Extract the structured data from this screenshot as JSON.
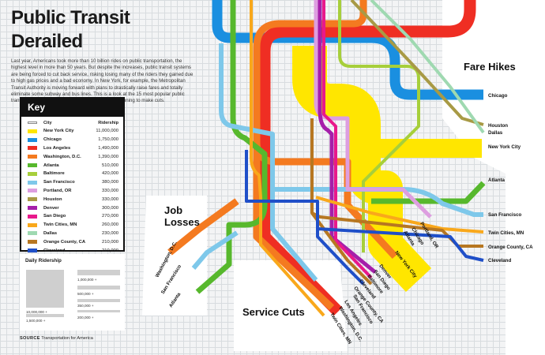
{
  "title": "Public Transit Derailed",
  "intro": "Last year, Americans took more than 10 billion rides on public transportation, the highest level in more than 50 years. But despite the increases, public transit systems are being forced to cut back service, risking losing many of the riders they gained due to high gas prices and a bad economy. In New York, for example, the Metropolitan Transit Authority is moving forward with plans to drastically raise fares and totally eliminate some subway and bus lines. This is a look at the 15 most popular public transit systems in America that have made or are planning to make cuts.",
  "key": {
    "title": "Key",
    "col_city": "City",
    "col_ridership": "Ridership",
    "rows": [
      {
        "city": "New York City",
        "ridership": "11,000,000",
        "color": "#ffe600"
      },
      {
        "city": "Chicago",
        "ridership": "1,750,000",
        "color": "#1a8fe0"
      },
      {
        "city": "Los Angeles",
        "ridership": "1,490,000",
        "color": "#ef2e23"
      },
      {
        "city": "Washington, D.C.",
        "ridership": "1,390,000",
        "color": "#f47a20"
      },
      {
        "city": "Atlanta",
        "ridership": "510,000",
        "color": "#57b82d"
      },
      {
        "city": "Baltimore",
        "ridership": "420,000",
        "color": "#a7cf3b"
      },
      {
        "city": "San Francisco",
        "ridership": "380,000",
        "color": "#7ec8ea"
      },
      {
        "city": "Portland, OR",
        "ridership": "330,000",
        "color": "#dd9ee0"
      },
      {
        "city": "Houston",
        "ridership": "330,000",
        "color": "#a89a45"
      },
      {
        "city": "Denver",
        "ridership": "300,000",
        "color": "#a51faa"
      },
      {
        "city": "San Diego",
        "ridership": "270,000",
        "color": "#e8198b"
      },
      {
        "city": "Twin Cities, MN",
        "ridership": "260,000",
        "color": "#f9a81b"
      },
      {
        "city": "Dallas",
        "ridership": "230,000",
        "color": "#9fd9b1"
      },
      {
        "city": "Orange County, CA",
        "ridership": "210,000",
        "color": "#b77721"
      },
      {
        "city": "Cleveland",
        "ridership": "210,000",
        "color": "#1f4fc8"
      }
    ]
  },
  "daily_ridership": {
    "title": "Daily Ridership",
    "labels": [
      "10,000,000 +",
      "1,500,000 +",
      "1,000,000 +",
      "500,000 +",
      "350,000 +",
      "200,000 +"
    ]
  },
  "source": {
    "label": "SOURCE",
    "text": "Transportation for America"
  },
  "regions": {
    "fare_hikes": "Fare Hikes",
    "job_losses": [
      "Job",
      "Losses"
    ],
    "service_cuts": "Service Cuts"
  },
  "endpoints": {
    "right": [
      "Chicago",
      "Houston",
      "Dallas",
      "New York City",
      "Atlanta",
      "San Francisco",
      "Twin Cities, MN",
      "Orange County, CA",
      "Cleveland"
    ],
    "left_rotated": [
      "Washington, D.C.",
      "San Francisco",
      "Atlanta"
    ],
    "diag_middle": [
      "Portland, OR",
      "Chicago",
      "Atlanta",
      "New York City",
      "Denver",
      "San Diego",
      "Baltimore",
      "Cleveland",
      "Orange County, CA"
    ],
    "diag_bottom": [
      "San Francisco",
      "Los Angeles",
      "Washington, D.C.",
      "Twin Cities, MN"
    ]
  }
}
